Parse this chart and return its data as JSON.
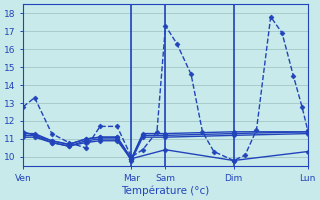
{
  "background_color": "#c8eaea",
  "grid_color": "#a8cccc",
  "line_color": "#2244bb",
  "xlabel": "Température (°c)",
  "ylim": [
    9.5,
    18.5
  ],
  "yticks": [
    10,
    11,
    12,
    13,
    14,
    15,
    16,
    17,
    18
  ],
  "xtick_labels": [
    "Ven",
    "Mar",
    "Sam",
    "Dim",
    "Lun"
  ],
  "xtick_positions": [
    0.0,
    0.38,
    0.5,
    0.74,
    1.0
  ],
  "vline_positions": [
    0.38,
    0.5,
    0.74
  ],
  "series": [
    {
      "x": [
        0.0,
        0.04,
        0.1,
        0.16,
        0.22,
        0.27,
        0.33,
        0.38,
        0.42,
        0.47,
        0.5,
        0.54,
        0.59,
        0.63,
        0.67,
        0.74,
        0.78,
        0.82,
        0.87,
        0.91,
        0.95,
        0.98,
        1.0
      ],
      "y": [
        12.8,
        13.3,
        11.3,
        10.8,
        10.5,
        11.7,
        11.7,
        10.0,
        10.4,
        11.4,
        17.3,
        16.3,
        14.6,
        11.4,
        10.3,
        9.8,
        10.1,
        11.5,
        17.8,
        16.9,
        14.5,
        12.8,
        11.5
      ],
      "linestyle": "--",
      "linewidth": 1.0,
      "marker": "D",
      "markersize": 2.5
    },
    {
      "x": [
        0.0,
        0.04,
        0.1,
        0.16,
        0.22,
        0.27,
        0.33,
        0.38,
        0.42,
        0.5,
        0.74,
        1.0
      ],
      "y": [
        11.3,
        11.3,
        10.9,
        10.7,
        11.0,
        11.1,
        11.1,
        9.9,
        11.3,
        11.3,
        11.4,
        11.4
      ],
      "linestyle": "-",
      "linewidth": 1.0,
      "marker": "D",
      "markersize": 2.5
    },
    {
      "x": [
        0.0,
        0.04,
        0.1,
        0.16,
        0.22,
        0.27,
        0.33,
        0.38,
        0.42,
        0.5,
        0.74,
        1.0
      ],
      "y": [
        11.2,
        11.2,
        10.9,
        10.7,
        11.0,
        11.1,
        11.1,
        9.9,
        11.2,
        11.2,
        11.3,
        11.4
      ],
      "linestyle": "-",
      "linewidth": 1.0,
      "marker": "D",
      "markersize": 2.5
    },
    {
      "x": [
        0.0,
        0.04,
        0.1,
        0.16,
        0.22,
        0.27,
        0.33,
        0.38,
        0.42,
        0.5,
        0.74,
        1.0
      ],
      "y": [
        11.1,
        11.1,
        10.8,
        10.6,
        10.9,
        11.0,
        11.0,
        9.8,
        11.1,
        11.1,
        11.2,
        11.3
      ],
      "linestyle": "-",
      "linewidth": 1.0,
      "marker": "D",
      "markersize": 2.5
    },
    {
      "x": [
        0.0,
        0.04,
        0.1,
        0.16,
        0.22,
        0.27,
        0.33,
        0.38,
        0.5,
        0.74,
        1.0
      ],
      "y": [
        11.4,
        11.2,
        10.8,
        10.6,
        10.8,
        10.9,
        10.9,
        9.9,
        10.4,
        9.8,
        10.3
      ],
      "linestyle": "-",
      "linewidth": 1.0,
      "marker": "D",
      "markersize": 2.5
    }
  ]
}
